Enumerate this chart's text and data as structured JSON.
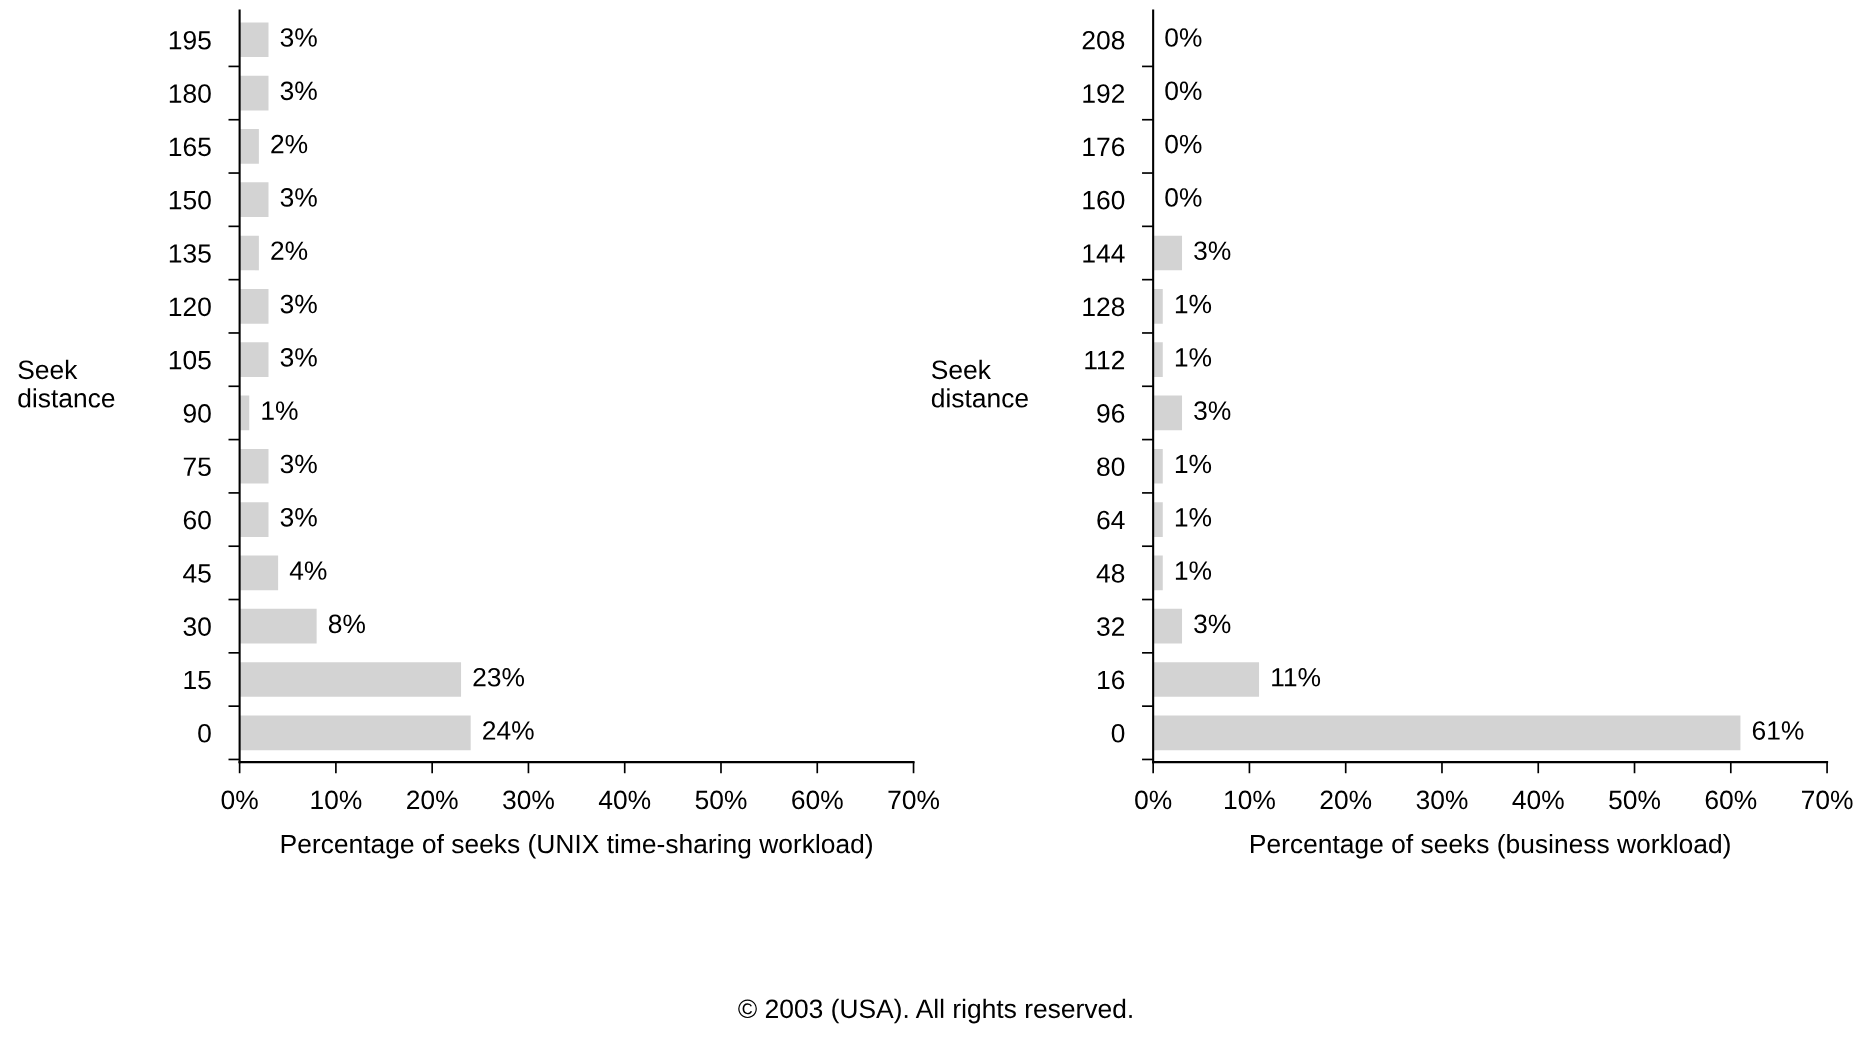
{
  "chart_data": [
    {
      "type": "bar",
      "orientation": "horizontal",
      "xlabel": "Percentage of seeks (UNIX time-sharing workload)",
      "ylabel": "Seek\ndistance",
      "categories": [
        "195",
        "180",
        "165",
        "150",
        "135",
        "120",
        "105",
        "90",
        "75",
        "60",
        "45",
        "30",
        "15",
        "0"
      ],
      "values": [
        3,
        3,
        2,
        3,
        2,
        3,
        3,
        1,
        3,
        3,
        4,
        8,
        23,
        24
      ],
      "value_labels": [
        "3%",
        "3%",
        "2%",
        "3%",
        "2%",
        "3%",
        "3%",
        "1%",
        "3%",
        "3%",
        "4%",
        "8%",
        "23%",
        "24%"
      ],
      "color": "#d3d3d3",
      "xlim": [
        0,
        70
      ],
      "xticks": [
        {
          "value": 0,
          "label": "0%"
        },
        {
          "value": 10,
          "label": "10%"
        },
        {
          "value": 20,
          "label": "20%"
        },
        {
          "value": 30,
          "label": "30%"
        },
        {
          "value": 40,
          "label": "40%"
        },
        {
          "value": 50,
          "label": "50%"
        },
        {
          "value": 60,
          "label": "60%"
        },
        {
          "value": 70,
          "label": "70%"
        }
      ],
      "annotations": [
        "© 2003 (USA). All rights reserved."
      ]
    },
    {
      "type": "bar",
      "orientation": "horizontal",
      "xlabel": "Percentage of seeks (business workload)",
      "ylabel": "Seek\ndistance",
      "categories": [
        "208",
        "192",
        "176",
        "160",
        "144",
        "128",
        "112",
        "96",
        "80",
        "64",
        "48",
        "32",
        "16",
        "0"
      ],
      "values": [
        0,
        0,
        0,
        0,
        3,
        1,
        1,
        3,
        1,
        1,
        1,
        3,
        11,
        61
      ],
      "value_labels": [
        "0%",
        "0%",
        "0%",
        "0%",
        "3%",
        "1%",
        "1%",
        "3%",
        "1%",
        "1%",
        "1%",
        "3%",
        "11%",
        "61%"
      ],
      "color": "#d3d3d3",
      "xlim": [
        0,
        70
      ],
      "xticks": [
        {
          "value": 0,
          "label": "0%"
        },
        {
          "value": 10,
          "label": "10%"
        },
        {
          "value": 20,
          "label": "20%"
        },
        {
          "value": 30,
          "label": "30%"
        },
        {
          "value": 40,
          "label": "40%"
        },
        {
          "value": 50,
          "label": "50%"
        },
        {
          "value": 60,
          "label": "60%"
        },
        {
          "value": 70,
          "label": "70%"
        }
      ]
    }
  ]
}
